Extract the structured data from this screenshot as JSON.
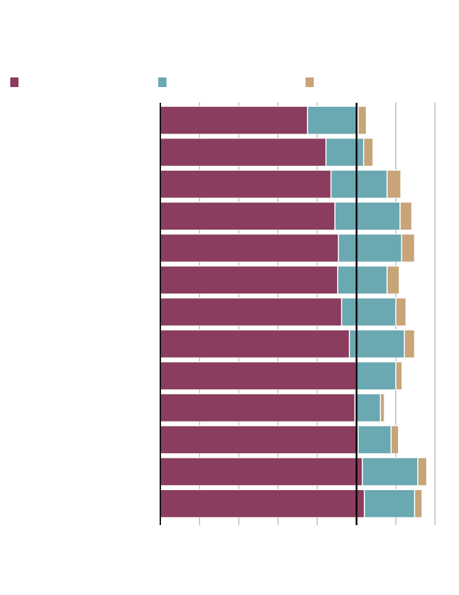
{
  "chart_data": {
    "type": "bar",
    "orientation": "horizontal",
    "stacked": true,
    "title": "",
    "xlabel": "",
    "ylabel": "",
    "xlim": [
      0,
      70
    ],
    "x_ticks": [
      0,
      10,
      20,
      30,
      40,
      50,
      60,
      70
    ],
    "reference_line": 50,
    "grid": true,
    "legend_position": "top",
    "categories": [
      "",
      "",
      "",
      "",
      "",
      "",
      "",
      "",
      "",
      "",
      "",
      "",
      ""
    ],
    "series": [
      {
        "name": "",
        "color": "#8b3d5f",
        "values": [
          37.5,
          42.2,
          43.5,
          44.5,
          45.4,
          45.2,
          46.2,
          48.2,
          49.9,
          49.6,
          50.4,
          51.5,
          52.0
        ]
      },
      {
        "name": "",
        "color": "#6aa8b2",
        "values": [
          12.9,
          9.6,
          14.3,
          16.6,
          16.1,
          12.6,
          13.8,
          14.0,
          10.1,
          6.5,
          8.4,
          14.1,
          12.8
        ]
      },
      {
        "name": "",
        "color": "#c8a479",
        "values": [
          2.1,
          2.4,
          3.5,
          3.0,
          3.3,
          3.1,
          2.6,
          2.6,
          1.6,
          1.0,
          1.9,
          2.3,
          1.9
        ]
      }
    ]
  }
}
